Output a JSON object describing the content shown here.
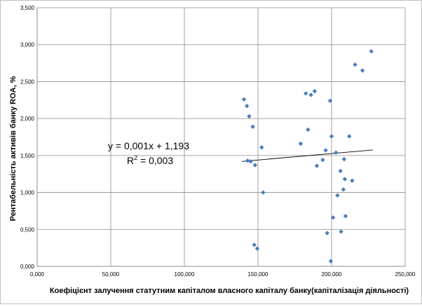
{
  "chart_data": {
    "type": "scatter",
    "xlabel": "Коефіцієнт залучення статутним капіталом   власного капіталу банку(капіталізація діяльності)",
    "ylabel": "Рентабельність активів  банку ROA, %",
    "xlim": [
      0,
      250000
    ],
    "ylim": [
      0,
      3.5
    ],
    "grid": true,
    "x_ticks": [
      "0,000",
      "50,000",
      "100,000",
      "150,000",
      "200,000",
      "250,000"
    ],
    "y_ticks": [
      "0,000",
      "0,500",
      "1,000",
      "1,500",
      "2,000",
      "2,500",
      "3,000",
      "3,500"
    ],
    "marker_color": "#4a7ebb",
    "points": [
      {
        "x": 140500,
        "y": 2.26
      },
      {
        "x": 142500,
        "y": 2.17
      },
      {
        "x": 144000,
        "y": 2.03
      },
      {
        "x": 143000,
        "y": 1.43
      },
      {
        "x": 145000,
        "y": 1.42
      },
      {
        "x": 146500,
        "y": 1.89
      },
      {
        "x": 148000,
        "y": 1.37
      },
      {
        "x": 152500,
        "y": 1.61
      },
      {
        "x": 153500,
        "y": 1.0
      },
      {
        "x": 147500,
        "y": 0.29
      },
      {
        "x": 149500,
        "y": 0.24
      },
      {
        "x": 179000,
        "y": 1.66
      },
      {
        "x": 182500,
        "y": 2.34
      },
      {
        "x": 184000,
        "y": 1.85
      },
      {
        "x": 186000,
        "y": 2.32
      },
      {
        "x": 188500,
        "y": 2.37
      },
      {
        "x": 190000,
        "y": 1.36
      },
      {
        "x": 194000,
        "y": 1.44
      },
      {
        "x": 196000,
        "y": 1.57
      },
      {
        "x": 197000,
        "y": 0.45
      },
      {
        "x": 199000,
        "y": 2.24
      },
      {
        "x": 200000,
        "y": 1.76
      },
      {
        "x": 201000,
        "y": 0.66
      },
      {
        "x": 199500,
        "y": 0.07
      },
      {
        "x": 203000,
        "y": 1.54
      },
      {
        "x": 204000,
        "y": 0.96
      },
      {
        "x": 206000,
        "y": 1.29
      },
      {
        "x": 206500,
        "y": 0.47
      },
      {
        "x": 208000,
        "y": 1.04
      },
      {
        "x": 208500,
        "y": 1.45
      },
      {
        "x": 209000,
        "y": 1.18
      },
      {
        "x": 209500,
        "y": 0.68
      },
      {
        "x": 212000,
        "y": 1.76
      },
      {
        "x": 214000,
        "y": 1.16
      },
      {
        "x": 216000,
        "y": 2.73
      },
      {
        "x": 221000,
        "y": 2.65
      },
      {
        "x": 227000,
        "y": 2.91
      }
    ],
    "trendline": {
      "from": {
        "x": 139000,
        "y": 1.42
      },
      "to": {
        "x": 228000,
        "y": 1.575
      }
    },
    "annotations": {
      "equation": "y = 0,001x + 1,193",
      "r2_prefix": "R",
      "r2_exp": "2",
      "r2_suffix": " = 0,003"
    }
  }
}
